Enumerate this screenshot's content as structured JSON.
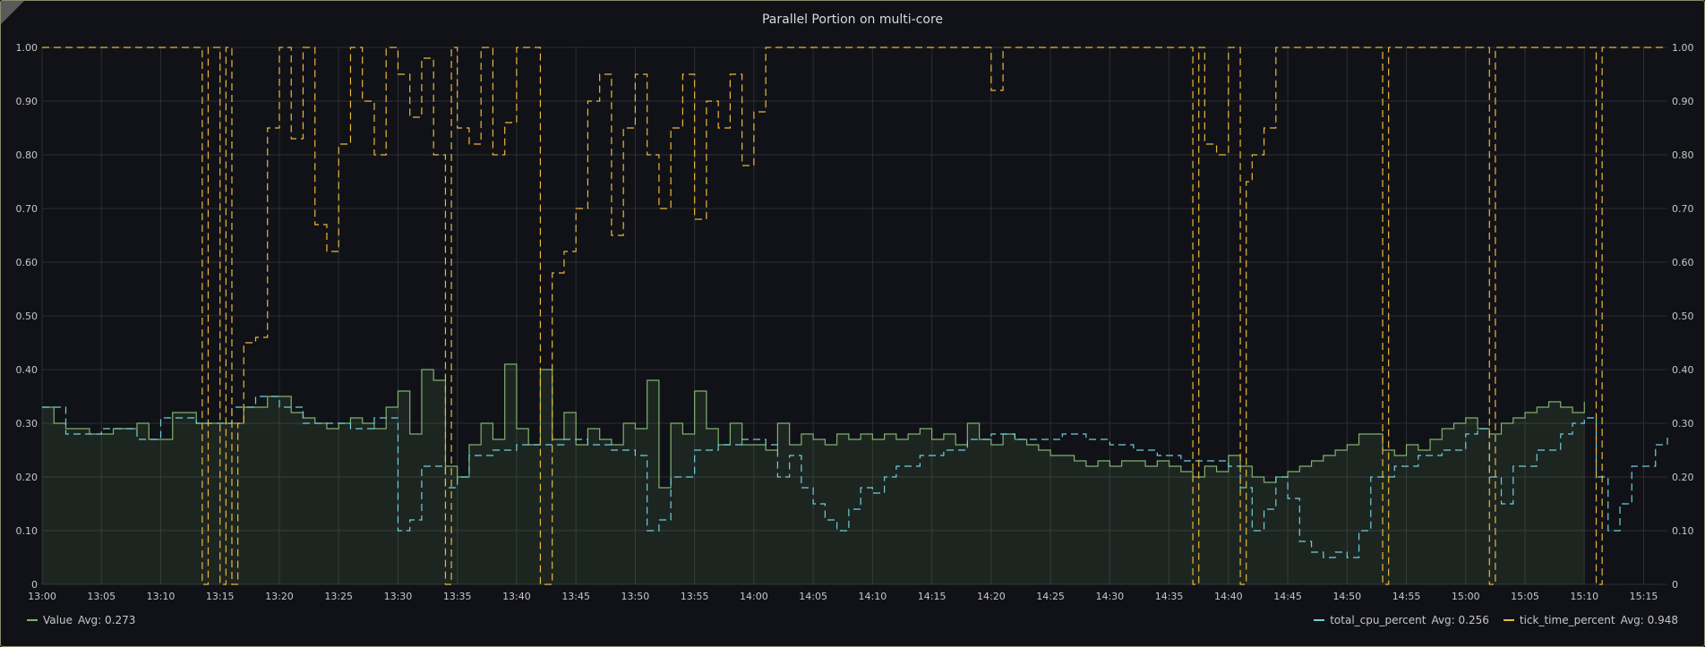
{
  "panel": {
    "title": "Parallel Portion on multi-core"
  },
  "colors": {
    "value": "#7eb26d",
    "cpu": "#6ed0e0",
    "tick": "#eab839",
    "grid": "#2c2e33"
  },
  "legend": {
    "left": [
      {
        "name": "Value",
        "avg": "Avg: 0.273",
        "color": "#7eb26d"
      }
    ],
    "right": [
      {
        "name": "total_cpu_percent",
        "avg": "Avg: 0.256",
        "color": "#6ed0e0"
      },
      {
        "name": "tick_time_percent",
        "avg": "Avg: 0.948",
        "color": "#eab839"
      }
    ]
  },
  "chart_data": {
    "type": "line",
    "title": "Parallel Portion on multi-core",
    "xlabel": "",
    "ylabel": "",
    "x_tick_labels": [
      "13:00",
      "13:05",
      "13:10",
      "13:15",
      "13:20",
      "13:25",
      "13:30",
      "13:35",
      "13:40",
      "13:45",
      "13:50",
      "13:55",
      "14:00",
      "14:05",
      "14:10",
      "14:15",
      "14:20",
      "14:25",
      "14:30",
      "14:35",
      "14:40",
      "14:45",
      "14:50",
      "14:55",
      "15:00",
      "15:05",
      "15:10",
      "15:15"
    ],
    "x_range_minutes": [
      0,
      137
    ],
    "y_tick_labels": [
      "0",
      "0.10",
      "0.20",
      "0.30",
      "0.40",
      "0.50",
      "0.60",
      "0.70",
      "0.80",
      "0.90",
      "1.00"
    ],
    "ylim": [
      0,
      1.0
    ],
    "y2lim": [
      0,
      1.0
    ],
    "grid": true,
    "legend_placement": "bottom",
    "series": [
      {
        "name": "Value",
        "avg": 0.273,
        "style": "solid-area",
        "points": [
          [
            0,
            0.33
          ],
          [
            1,
            0.3
          ],
          [
            2,
            0.29
          ],
          [
            4,
            0.28
          ],
          [
            6,
            0.29
          ],
          [
            8,
            0.3
          ],
          [
            9,
            0.27
          ],
          [
            11,
            0.32
          ],
          [
            13,
            0.3
          ],
          [
            15,
            0.3
          ],
          [
            17,
            0.33
          ],
          [
            19,
            0.35
          ],
          [
            21,
            0.32
          ],
          [
            22,
            0.31
          ],
          [
            23,
            0.3
          ],
          [
            24,
            0.29
          ],
          [
            25,
            0.3
          ],
          [
            26,
            0.31
          ],
          [
            27,
            0.3
          ],
          [
            28,
            0.29
          ],
          [
            29,
            0.33
          ],
          [
            30,
            0.36
          ],
          [
            31,
            0.28
          ],
          [
            32,
            0.4
          ],
          [
            33,
            0.38
          ],
          [
            34,
            0.22
          ],
          [
            35,
            0.2
          ],
          [
            36,
            0.26
          ],
          [
            37,
            0.3
          ],
          [
            38,
            0.27
          ],
          [
            39,
            0.41
          ],
          [
            40,
            0.29
          ],
          [
            41,
            0.26
          ],
          [
            42,
            0.4
          ],
          [
            43,
            0.27
          ],
          [
            44,
            0.32
          ],
          [
            45,
            0.26
          ],
          [
            46,
            0.29
          ],
          [
            47,
            0.27
          ],
          [
            48,
            0.26
          ],
          [
            49,
            0.3
          ],
          [
            50,
            0.29
          ],
          [
            51,
            0.38
          ],
          [
            52,
            0.18
          ],
          [
            53,
            0.3
          ],
          [
            54,
            0.28
          ],
          [
            55,
            0.36
          ],
          [
            56,
            0.29
          ],
          [
            57,
            0.26
          ],
          [
            58,
            0.3
          ],
          [
            59,
            0.26
          ],
          [
            60,
            0.26
          ],
          [
            61,
            0.25
          ],
          [
            62,
            0.3
          ],
          [
            63,
            0.26
          ],
          [
            64,
            0.28
          ],
          [
            65,
            0.27
          ],
          [
            66,
            0.26
          ],
          [
            67,
            0.28
          ],
          [
            68,
            0.27
          ],
          [
            69,
            0.28
          ],
          [
            70,
            0.27
          ],
          [
            71,
            0.28
          ],
          [
            72,
            0.27
          ],
          [
            73,
            0.28
          ],
          [
            74,
            0.29
          ],
          [
            75,
            0.27
          ],
          [
            76,
            0.28
          ],
          [
            77,
            0.26
          ],
          [
            78,
            0.3
          ],
          [
            79,
            0.27
          ],
          [
            80,
            0.26
          ],
          [
            81,
            0.28
          ],
          [
            82,
            0.27
          ],
          [
            83,
            0.26
          ],
          [
            84,
            0.25
          ],
          [
            85,
            0.24
          ],
          [
            86,
            0.24
          ],
          [
            87,
            0.23
          ],
          [
            88,
            0.22
          ],
          [
            89,
            0.23
          ],
          [
            90,
            0.22
          ],
          [
            91,
            0.23
          ],
          [
            92,
            0.23
          ],
          [
            93,
            0.22
          ],
          [
            94,
            0.23
          ],
          [
            95,
            0.22
          ],
          [
            96,
            0.21
          ],
          [
            97,
            0.2
          ],
          [
            98,
            0.22
          ],
          [
            99,
            0.21
          ],
          [
            100,
            0.24
          ],
          [
            101,
            0.22
          ],
          [
            102,
            0.2
          ],
          [
            103,
            0.19
          ],
          [
            104,
            0.2
          ],
          [
            105,
            0.21
          ],
          [
            106,
            0.22
          ],
          [
            107,
            0.23
          ],
          [
            108,
            0.24
          ],
          [
            109,
            0.25
          ],
          [
            110,
            0.26
          ],
          [
            111,
            0.28
          ],
          [
            112,
            0.28
          ],
          [
            113,
            0.25
          ],
          [
            114,
            0.24
          ],
          [
            115,
            0.26
          ],
          [
            116,
            0.25
          ],
          [
            117,
            0.27
          ],
          [
            118,
            0.29
          ],
          [
            119,
            0.3
          ],
          [
            120,
            0.31
          ],
          [
            121,
            0.29
          ],
          [
            122,
            0.28
          ],
          [
            123,
            0.3
          ],
          [
            124,
            0.31
          ],
          [
            125,
            0.32
          ],
          [
            126,
            0.33
          ],
          [
            127,
            0.34
          ],
          [
            128,
            0.33
          ],
          [
            129,
            0.32
          ],
          [
            130,
            0.34
          ]
        ]
      },
      {
        "name": "total_cpu_percent",
        "avg": 0.256,
        "style": "dashed",
        "points": [
          [
            0,
            0.33
          ],
          [
            2,
            0.28
          ],
          [
            5,
            0.29
          ],
          [
            8,
            0.27
          ],
          [
            10,
            0.31
          ],
          [
            13,
            0.3
          ],
          [
            16,
            0.33
          ],
          [
            18,
            0.35
          ],
          [
            20,
            0.33
          ],
          [
            22,
            0.3
          ],
          [
            24,
            0.3
          ],
          [
            26,
            0.29
          ],
          [
            28,
            0.31
          ],
          [
            30,
            0.1
          ],
          [
            31,
            0.12
          ],
          [
            32,
            0.22
          ],
          [
            34,
            0.18
          ],
          [
            35,
            0.2
          ],
          [
            36,
            0.24
          ],
          [
            38,
            0.25
          ],
          [
            40,
            0.26
          ],
          [
            42,
            0.26
          ],
          [
            44,
            0.27
          ],
          [
            46,
            0.26
          ],
          [
            48,
            0.25
          ],
          [
            50,
            0.24
          ],
          [
            51,
            0.1
          ],
          [
            52,
            0.12
          ],
          [
            53,
            0.2
          ],
          [
            55,
            0.25
          ],
          [
            57,
            0.26
          ],
          [
            59,
            0.27
          ],
          [
            61,
            0.26
          ],
          [
            62,
            0.2
          ],
          [
            63,
            0.24
          ],
          [
            64,
            0.18
          ],
          [
            65,
            0.15
          ],
          [
            66,
            0.12
          ],
          [
            67,
            0.1
          ],
          [
            68,
            0.14
          ],
          [
            69,
            0.18
          ],
          [
            70,
            0.17
          ],
          [
            71,
            0.2
          ],
          [
            72,
            0.22
          ],
          [
            74,
            0.24
          ],
          [
            76,
            0.25
          ],
          [
            78,
            0.27
          ],
          [
            80,
            0.28
          ],
          [
            82,
            0.27
          ],
          [
            84,
            0.27
          ],
          [
            86,
            0.28
          ],
          [
            88,
            0.27
          ],
          [
            90,
            0.26
          ],
          [
            92,
            0.25
          ],
          [
            94,
            0.24
          ],
          [
            96,
            0.23
          ],
          [
            98,
            0.23
          ],
          [
            100,
            0.22
          ],
          [
            101,
            0.18
          ],
          [
            102,
            0.1
          ],
          [
            103,
            0.14
          ],
          [
            104,
            0.2
          ],
          [
            105,
            0.16
          ],
          [
            106,
            0.08
          ],
          [
            107,
            0.06
          ],
          [
            108,
            0.05
          ],
          [
            109,
            0.06
          ],
          [
            110,
            0.05
          ],
          [
            111,
            0.1
          ],
          [
            112,
            0.2
          ],
          [
            114,
            0.22
          ],
          [
            116,
            0.24
          ],
          [
            118,
            0.25
          ],
          [
            120,
            0.28
          ],
          [
            121,
            0.29
          ],
          [
            122,
            0.2
          ],
          [
            123,
            0.15
          ],
          [
            124,
            0.22
          ],
          [
            126,
            0.25
          ],
          [
            128,
            0.28
          ],
          [
            129,
            0.3
          ],
          [
            130,
            0.31
          ],
          [
            131,
            0.2
          ],
          [
            132,
            0.1
          ],
          [
            133,
            0.15
          ],
          [
            134,
            0.22
          ],
          [
            136,
            0.26
          ],
          [
            137,
            0.28
          ]
        ]
      },
      {
        "name": "tick_time_percent",
        "avg": 0.948,
        "style": "dashed",
        "points": [
          [
            0,
            1.0
          ],
          [
            5,
            1.0
          ],
          [
            10,
            1.0
          ],
          [
            13,
            1.0
          ],
          [
            13.5,
            0.0
          ],
          [
            14,
            1.0
          ],
          [
            15,
            0.0
          ],
          [
            15.5,
            1.0
          ],
          [
            16,
            0.0
          ],
          [
            16.5,
            0.3
          ],
          [
            17,
            0.45
          ],
          [
            18,
            0.46
          ],
          [
            19,
            0.85
          ],
          [
            20,
            1.0
          ],
          [
            21,
            0.83
          ],
          [
            22,
            1.0
          ],
          [
            23,
            0.67
          ],
          [
            24,
            0.62
          ],
          [
            25,
            0.82
          ],
          [
            26,
            1.0
          ],
          [
            27,
            0.9
          ],
          [
            28,
            0.8
          ],
          [
            29,
            1.0
          ],
          [
            30,
            0.95
          ],
          [
            31,
            0.87
          ],
          [
            32,
            0.98
          ],
          [
            33,
            0.8
          ],
          [
            34,
            0.0
          ],
          [
            34.5,
            1.0
          ],
          [
            35,
            0.85
          ],
          [
            36,
            0.82
          ],
          [
            37,
            1.0
          ],
          [
            38,
            0.8
          ],
          [
            39,
            0.86
          ],
          [
            40,
            1.0
          ],
          [
            41,
            1.0
          ],
          [
            42,
            0.0
          ],
          [
            43,
            0.58
          ],
          [
            44,
            0.62
          ],
          [
            45,
            0.7
          ],
          [
            46,
            0.9
          ],
          [
            47,
            0.95
          ],
          [
            48,
            0.65
          ],
          [
            49,
            0.85
          ],
          [
            50,
            0.95
          ],
          [
            51,
            0.8
          ],
          [
            52,
            0.7
          ],
          [
            53,
            0.85
          ],
          [
            54,
            0.95
          ],
          [
            55,
            0.68
          ],
          [
            56,
            0.9
          ],
          [
            57,
            0.85
          ],
          [
            58,
            0.95
          ],
          [
            59,
            0.78
          ],
          [
            60,
            0.88
          ],
          [
            61,
            1.0
          ],
          [
            63,
            1.0
          ],
          [
            66,
            1.0
          ],
          [
            70,
            1.0
          ],
          [
            74,
            1.0
          ],
          [
            78,
            1.0
          ],
          [
            80,
            0.92
          ],
          [
            81,
            1.0
          ],
          [
            84,
            1.0
          ],
          [
            87,
            1.0
          ],
          [
            90,
            1.0
          ],
          [
            94,
            1.0
          ],
          [
            96,
            1.0
          ],
          [
            97,
            0.0
          ],
          [
            97.5,
            1.0
          ],
          [
            98,
            0.82
          ],
          [
            99,
            0.8
          ],
          [
            100,
            1.0
          ],
          [
            101,
            0.0
          ],
          [
            101.5,
            0.75
          ],
          [
            102,
            0.8
          ],
          [
            103,
            0.85
          ],
          [
            104,
            1.0
          ],
          [
            106,
            1.0
          ],
          [
            109,
            1.0
          ],
          [
            112,
            1.0
          ],
          [
            113,
            0.0
          ],
          [
            113.5,
            1.0
          ],
          [
            116,
            1.0
          ],
          [
            119,
            1.0
          ],
          [
            121,
            1.0
          ],
          [
            122,
            0.0
          ],
          [
            122.5,
            1.0
          ],
          [
            125,
            1.0
          ],
          [
            128,
            1.0
          ],
          [
            130,
            1.0
          ],
          [
            131,
            0.0
          ],
          [
            131.5,
            1.0
          ],
          [
            134,
            1.0
          ],
          [
            137,
            1.0
          ]
        ]
      }
    ]
  }
}
